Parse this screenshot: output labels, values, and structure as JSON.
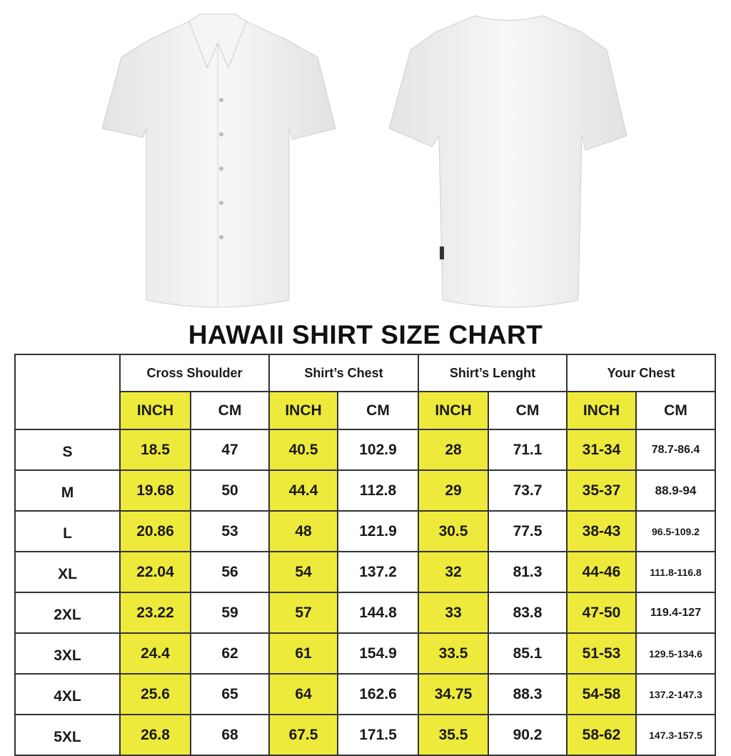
{
  "title": "HAWAII SHIRT SIZE CHART",
  "colors": {
    "inch_highlight": "#eeea3c",
    "border": "#333333",
    "shirt": "#f2f2f2"
  },
  "images": [
    "shirt-front-white",
    "shirt-back-white"
  ],
  "table": {
    "groups": [
      "Cross Shoulder",
      "Shirt’s Chest",
      "Shirt’s Lenght",
      "Your Chest"
    ],
    "units": [
      "INCH",
      "CM",
      "INCH",
      "CM",
      "INCH",
      "CM",
      "INCH",
      "CM"
    ],
    "rows": [
      {
        "size": "S",
        "values": [
          "18.5",
          "47",
          "40.5",
          "102.9",
          "28",
          "71.1",
          "31-34",
          "78.7-86.4"
        ]
      },
      {
        "size": "M",
        "values": [
          "19.68",
          "50",
          "44.4",
          "112.8",
          "29",
          "73.7",
          "35-37",
          "88.9-94"
        ]
      },
      {
        "size": "L",
        "values": [
          "20.86",
          "53",
          "48",
          "121.9",
          "30.5",
          "77.5",
          "38-43",
          "96.5-109.2"
        ]
      },
      {
        "size": "XL",
        "values": [
          "22.04",
          "56",
          "54",
          "137.2",
          "32",
          "81.3",
          "44-46",
          "111.8-116.8"
        ]
      },
      {
        "size": "2XL",
        "values": [
          "23.22",
          "59",
          "57",
          "144.8",
          "33",
          "83.8",
          "47-50",
          "119.4-127"
        ]
      },
      {
        "size": "3XL",
        "values": [
          "24.4",
          "62",
          "61",
          "154.9",
          "33.5",
          "85.1",
          "51-53",
          "129.5-134.6"
        ]
      },
      {
        "size": "4XL",
        "values": [
          "25.6",
          "65",
          "64",
          "162.6",
          "34.75",
          "88.3",
          "54-58",
          "137.2-147.3"
        ]
      },
      {
        "size": "5XL",
        "values": [
          "26.8",
          "68",
          "67.5",
          "171.5",
          "35.5",
          "90.2",
          "58-62",
          "147.3-157.5"
        ]
      }
    ]
  }
}
